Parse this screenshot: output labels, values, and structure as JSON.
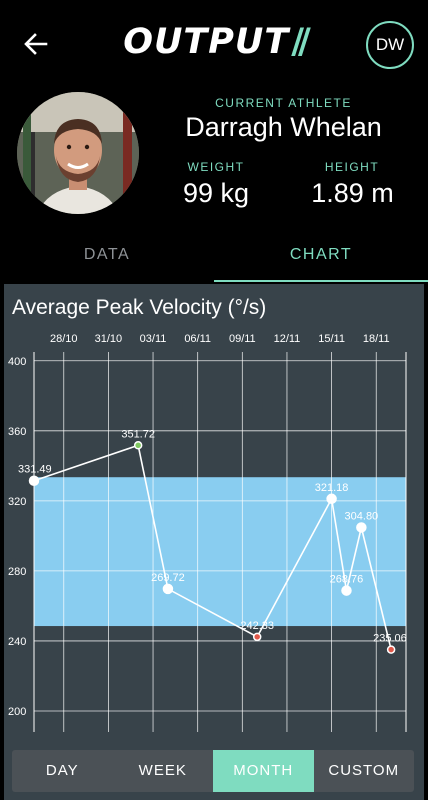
{
  "header": {
    "logo_text": "OUTPUT",
    "logo_slashes": "//",
    "user_initials": "DW"
  },
  "athlete": {
    "current_label": "CURRENT ATHLETE",
    "name": "Darragh Whelan",
    "weight_label": "WEIGHT",
    "weight_value": "99 kg",
    "height_label": "HEIGHT",
    "height_value": "1.89 m"
  },
  "tabs": [
    {
      "label": "DATA",
      "active": false
    },
    {
      "label": "CHART",
      "active": true
    }
  ],
  "period_selector": [
    {
      "label": "DAY",
      "active": false
    },
    {
      "label": "WEEK",
      "active": false
    },
    {
      "label": "MONTH",
      "active": true
    },
    {
      "label": "CUSTOM",
      "active": false
    }
  ],
  "colors": {
    "accent": "#7fdcc0",
    "panel_bg": "#38434a",
    "band": "#89cdf0",
    "max_marker": "#7fc860",
    "min_marker": "#e0584a"
  },
  "chart_data": {
    "type": "line",
    "title": "Average Peak Velocity (°/s)",
    "x_tick_labels": [
      "28/10",
      "31/10",
      "03/11",
      "06/11",
      "09/11",
      "12/11",
      "15/11",
      "18/11"
    ],
    "x_ticks_date": [
      "2023-10-28",
      "2023-10-31",
      "2023-11-03",
      "2023-11-06",
      "2023-11-09",
      "2023-11-12",
      "2023-11-15",
      "2023-11-18"
    ],
    "y_ticks": [
      200,
      240,
      280,
      320,
      360,
      400
    ],
    "ylim": [
      188,
      405
    ],
    "xlim": [
      "2023-10-26",
      "2023-11-20"
    ],
    "grid": true,
    "band": {
      "low": 248.5,
      "high": 333.5
    },
    "points": [
      {
        "date": "2023-10-26",
        "value": 331.49,
        "label": "331.49",
        "marker": "normal"
      },
      {
        "date": "2023-11-02",
        "value": 351.72,
        "label": "351.72",
        "marker": "max"
      },
      {
        "date": "2023-11-04",
        "value": 269.72,
        "label": "269.72",
        "marker": "normal"
      },
      {
        "date": "2023-11-10",
        "value": 242.33,
        "label": "242.33",
        "marker": "min"
      },
      {
        "date": "2023-11-15",
        "value": 321.18,
        "label": "321.18",
        "marker": "normal"
      },
      {
        "date": "2023-11-16",
        "value": 268.76,
        "label": "268.76",
        "marker": "normal"
      },
      {
        "date": "2023-11-17",
        "value": 304.8,
        "label": "304.80",
        "marker": "normal"
      },
      {
        "date": "2023-11-19",
        "value": 235.06,
        "label": "235.06",
        "marker": "min"
      }
    ]
  }
}
